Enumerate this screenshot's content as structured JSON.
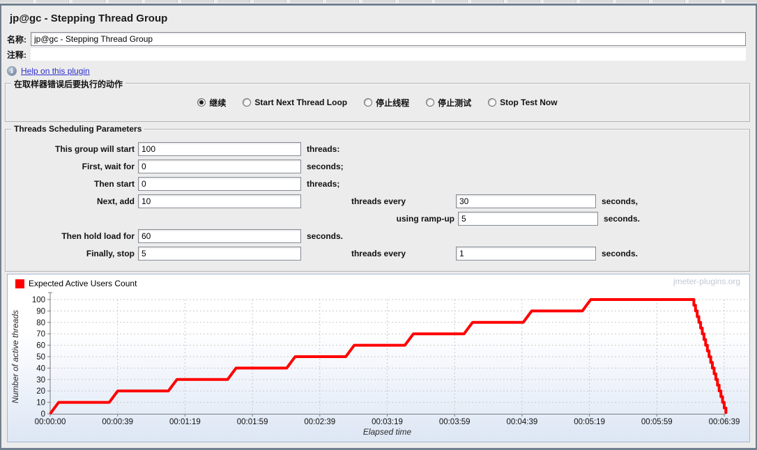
{
  "window": {
    "title": "jp@gc - Stepping Thread Group"
  },
  "form": {
    "name_label": "名称:",
    "name_value": "jp@gc - Stepping Thread Group",
    "comment_label": "注释:",
    "comment_value": "",
    "help_link": "Help on this plugin"
  },
  "error_action": {
    "group_title": "在取样器错误后要执行的动作",
    "options": [
      {
        "key": "continue",
        "label": "继续",
        "selected": true
      },
      {
        "key": "start-next-thread-loop",
        "label": "Start Next Thread Loop",
        "selected": false
      },
      {
        "key": "stop-thread",
        "label": "停止线程",
        "selected": false
      },
      {
        "key": "stop-test",
        "label": "停止测试",
        "selected": false
      },
      {
        "key": "stop-test-now",
        "label": "Stop Test Now",
        "selected": false
      }
    ]
  },
  "scheduling": {
    "group_title": "Threads Scheduling Parameters",
    "rows": [
      {
        "key": "start-threads-count",
        "label": "This group will start",
        "value": "100",
        "suffix": "threads:"
      },
      {
        "key": "initial-delay",
        "label": "First, wait for",
        "value": "0",
        "suffix": "seconds;"
      },
      {
        "key": "start-users-count",
        "label": "Then start",
        "value": "0",
        "suffix": "threads;"
      },
      {
        "key": "increment-users",
        "label": "Next, add",
        "value": "10",
        "mid": "threads every",
        "value2": "30",
        "suffix": "seconds,"
      },
      {
        "key": "ramp-up",
        "label": "using ramp-up",
        "wide": true,
        "value2": "5",
        "suffix": "seconds."
      },
      {
        "key": "hold-load",
        "label": "Then hold load for",
        "value": "60",
        "suffix": "seconds."
      },
      {
        "key": "stop-users",
        "label": "Finally, stop",
        "value": "5",
        "mid": "threads every",
        "value2": "1",
        "suffix": "seconds."
      }
    ]
  },
  "chart_data": {
    "type": "line",
    "legend": "Expected Active Users Count",
    "watermark": "jmeter-plugins.org",
    "xlabel": "Elapsed time",
    "ylabel": "Number of active threads",
    "ylim": [
      0,
      100
    ],
    "y_tick_step": 10,
    "x_ticks": [
      "00:00:00",
      "00:00:39",
      "00:01:19",
      "00:01:59",
      "00:02:39",
      "00:03:19",
      "00:03:59",
      "00:04:39",
      "00:05:19",
      "00:05:59",
      "00:06:39"
    ],
    "x_tick_interval_seconds": 39.9,
    "grid": "dashed",
    "legend_position": "top-left",
    "series": [
      {
        "name": "Expected Active Users Count",
        "color": "#ff0000",
        "points": [
          [
            0,
            0
          ],
          [
            5,
            10
          ],
          [
            35,
            10
          ],
          [
            40,
            20
          ],
          [
            70,
            20
          ],
          [
            75,
            30
          ],
          [
            105,
            30
          ],
          [
            110,
            40
          ],
          [
            140,
            40
          ],
          [
            145,
            50
          ],
          [
            175,
            50
          ],
          [
            180,
            60
          ],
          [
            210,
            60
          ],
          [
            215,
            70
          ],
          [
            245,
            70
          ],
          [
            250,
            80
          ],
          [
            280,
            80
          ],
          [
            285,
            90
          ],
          [
            315,
            90
          ],
          [
            320,
            100
          ],
          [
            380,
            100
          ],
          [
            381,
            100
          ],
          [
            381,
            95
          ],
          [
            382,
            95
          ],
          [
            382,
            90
          ],
          [
            383,
            90
          ],
          [
            383,
            85
          ],
          [
            384,
            85
          ],
          [
            384,
            80
          ],
          [
            385,
            80
          ],
          [
            385,
            75
          ],
          [
            386,
            75
          ],
          [
            386,
            70
          ],
          [
            387,
            70
          ],
          [
            387,
            65
          ],
          [
            388,
            65
          ],
          [
            388,
            60
          ],
          [
            389,
            60
          ],
          [
            389,
            55
          ],
          [
            390,
            55
          ],
          [
            390,
            50
          ],
          [
            391,
            50
          ],
          [
            391,
            45
          ],
          [
            392,
            45
          ],
          [
            392,
            40
          ],
          [
            393,
            40
          ],
          [
            393,
            35
          ],
          [
            394,
            35
          ],
          [
            394,
            30
          ],
          [
            395,
            30
          ],
          [
            395,
            25
          ],
          [
            396,
            25
          ],
          [
            396,
            20
          ],
          [
            397,
            20
          ],
          [
            397,
            15
          ],
          [
            398,
            15
          ],
          [
            398,
            10
          ],
          [
            399,
            10
          ],
          [
            399,
            5
          ],
          [
            400,
            5
          ],
          [
            400,
            0
          ]
        ]
      }
    ]
  }
}
